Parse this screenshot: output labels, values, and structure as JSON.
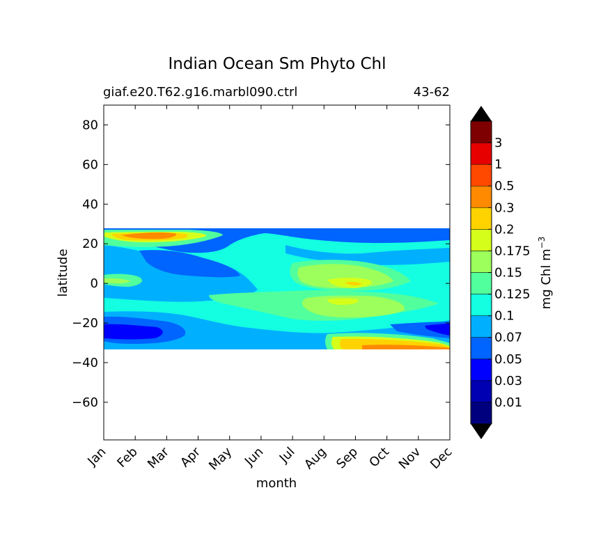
{
  "chart_data": {
    "type": "heatmap",
    "title": "Indian Ocean Sm Phyto Chl",
    "subtitle_left": "giaf.e20.T62.g16.marbl090.ctrl",
    "subtitle_right": "43-62",
    "xlabel": "month",
    "ylabel": "latitude",
    "x_categories": [
      "Jan",
      "Feb",
      "Mar",
      "Apr",
      "May",
      "Jun",
      "Jul",
      "Aug",
      "Sep",
      "Oct",
      "Nov",
      "Dec"
    ],
    "y_ticks": [
      80,
      60,
      40,
      20,
      0,
      -20,
      -40,
      -60
    ],
    "ylim": [
      -79,
      90
    ],
    "data_lat_range": [
      -34,
      27
    ],
    "grid": false,
    "colorbar": {
      "label": "mg Chl m",
      "label_superscript": "−3",
      "levels": [
        "0.01",
        "0.03",
        "0.05",
        "0.07",
        "0.1",
        "0.125",
        "0.15",
        "0.175",
        "0.2",
        "0.3",
        "0.5",
        "1",
        "3"
      ],
      "colors": [
        "#00007f",
        "#0000b2",
        "#0000ff",
        "#0064ff",
        "#00b0ff",
        "#14ffe2",
        "#52ff9d",
        "#9cff5b",
        "#d5ff1b",
        "#ffd300",
        "#ff8a00",
        "#ff4800",
        "#e60000",
        "#7f0000"
      ],
      "extend": "both"
    }
  }
}
